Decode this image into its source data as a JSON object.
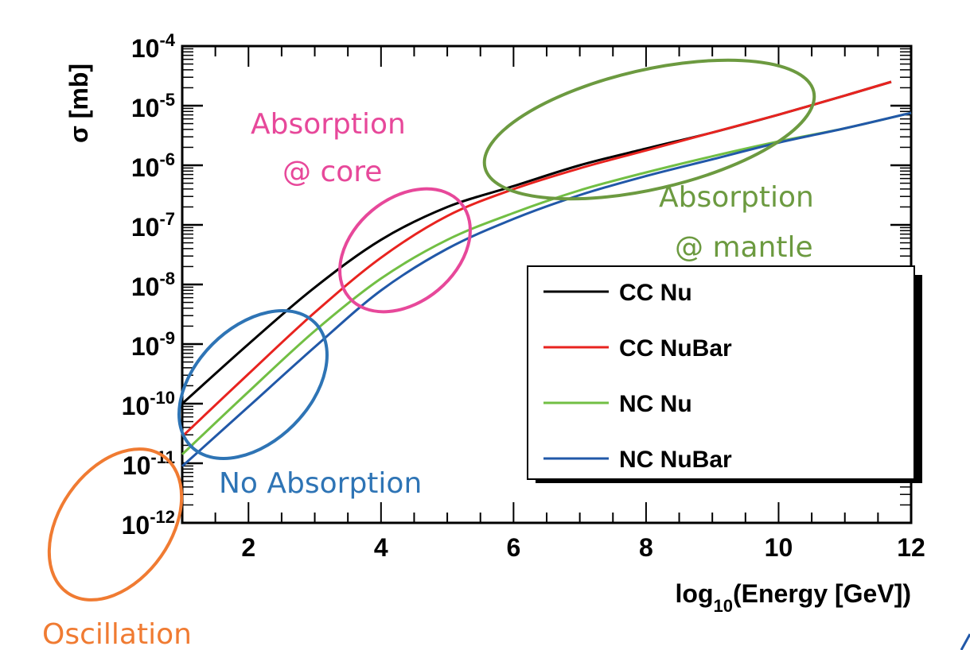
{
  "chart_data": {
    "type": "line",
    "title": "",
    "xlabel": "log10(Energy [GeV])",
    "xlabel_main": "log",
    "xlabel_sub": "10",
    "xlabel_rest": "(Energy [GeV])",
    "ylabel": "σ [mb]",
    "x_scale": "linear",
    "y_scale": "log",
    "xlim": [
      1,
      12
    ],
    "ylim": [
      1e-12,
      0.0001
    ],
    "x_ticks": [
      "2",
      "4",
      "6",
      "8",
      "10",
      "12"
    ],
    "y_ticks": [
      {
        "base": "10",
        "exp": "-4"
      },
      {
        "base": "10",
        "exp": "-5"
      },
      {
        "base": "10",
        "exp": "-6"
      },
      {
        "base": "10",
        "exp": "-7"
      },
      {
        "base": "10",
        "exp": "-8"
      },
      {
        "base": "10",
        "exp": "-9"
      },
      {
        "base": "10",
        "exp": "-10"
      },
      {
        "base": "10",
        "exp": "-11"
      },
      {
        "base": "10",
        "exp": "-12"
      }
    ],
    "legend_position": "right",
    "series": [
      {
        "name": "CC Nu",
        "color": "#000000",
        "x": [
          1.0,
          2.0,
          3.0,
          4.0,
          5.0,
          6.0,
          7.0,
          8.0,
          9.0,
          10.0,
          11.0,
          11.7
        ],
        "log10_y": [
          -10.0,
          -9.0,
          -8.05,
          -7.25,
          -6.7,
          -6.35,
          -6.0,
          -5.72,
          -5.45,
          -5.15,
          -4.83,
          -4.6
        ]
      },
      {
        "name": "CC NuBar",
        "color": "#e8231f",
        "x": [
          1.0,
          2.0,
          3.0,
          4.0,
          5.0,
          6.0,
          7.0,
          8.0,
          9.0,
          10.0,
          11.0,
          11.7
        ],
        "log10_y": [
          -10.55,
          -9.5,
          -8.47,
          -7.55,
          -6.85,
          -6.4,
          -6.05,
          -5.75,
          -5.45,
          -5.15,
          -4.83,
          -4.6
        ]
      },
      {
        "name": "NC Nu",
        "color": "#72bf44",
        "x": [
          1.0,
          2.0,
          3.0,
          4.0,
          5.0,
          6.0,
          7.0,
          8.0,
          9.0,
          10.0,
          11.0,
          12.0
        ],
        "log10_y": [
          -10.85,
          -9.8,
          -8.78,
          -7.9,
          -7.25,
          -6.8,
          -6.42,
          -6.12,
          -5.85,
          -5.6,
          -5.38,
          -5.12
        ]
      },
      {
        "name": "NC NuBar",
        "color": "#2158a8",
        "x": [
          1.0,
          2.0,
          3.0,
          4.0,
          5.0,
          6.0,
          7.0,
          8.0,
          9.0,
          10.0,
          11.0,
          12.0
        ],
        "log10_y": [
          -11.05,
          -10.05,
          -9.05,
          -8.1,
          -7.4,
          -6.9,
          -6.5,
          -6.18,
          -5.9,
          -5.62,
          -5.38,
          -5.12
        ]
      }
    ],
    "annotations": [
      {
        "id": "oscillation",
        "text": "Oscillation",
        "color": "#f07b32"
      },
      {
        "id": "no-absorption",
        "text": "No Absorption",
        "color": "#2e74b5"
      },
      {
        "id": "absorption-core-1",
        "text": "Absorption",
        "color": "#e7489a"
      },
      {
        "id": "absorption-core-2",
        "text": "@ core",
        "color": "#e7489a"
      },
      {
        "id": "absorption-mantle-1",
        "text": "Absorption",
        "color": "#6c9a40"
      },
      {
        "id": "absorption-mantle-2",
        "text": "@ mantle",
        "color": "#6c9a40"
      }
    ]
  }
}
